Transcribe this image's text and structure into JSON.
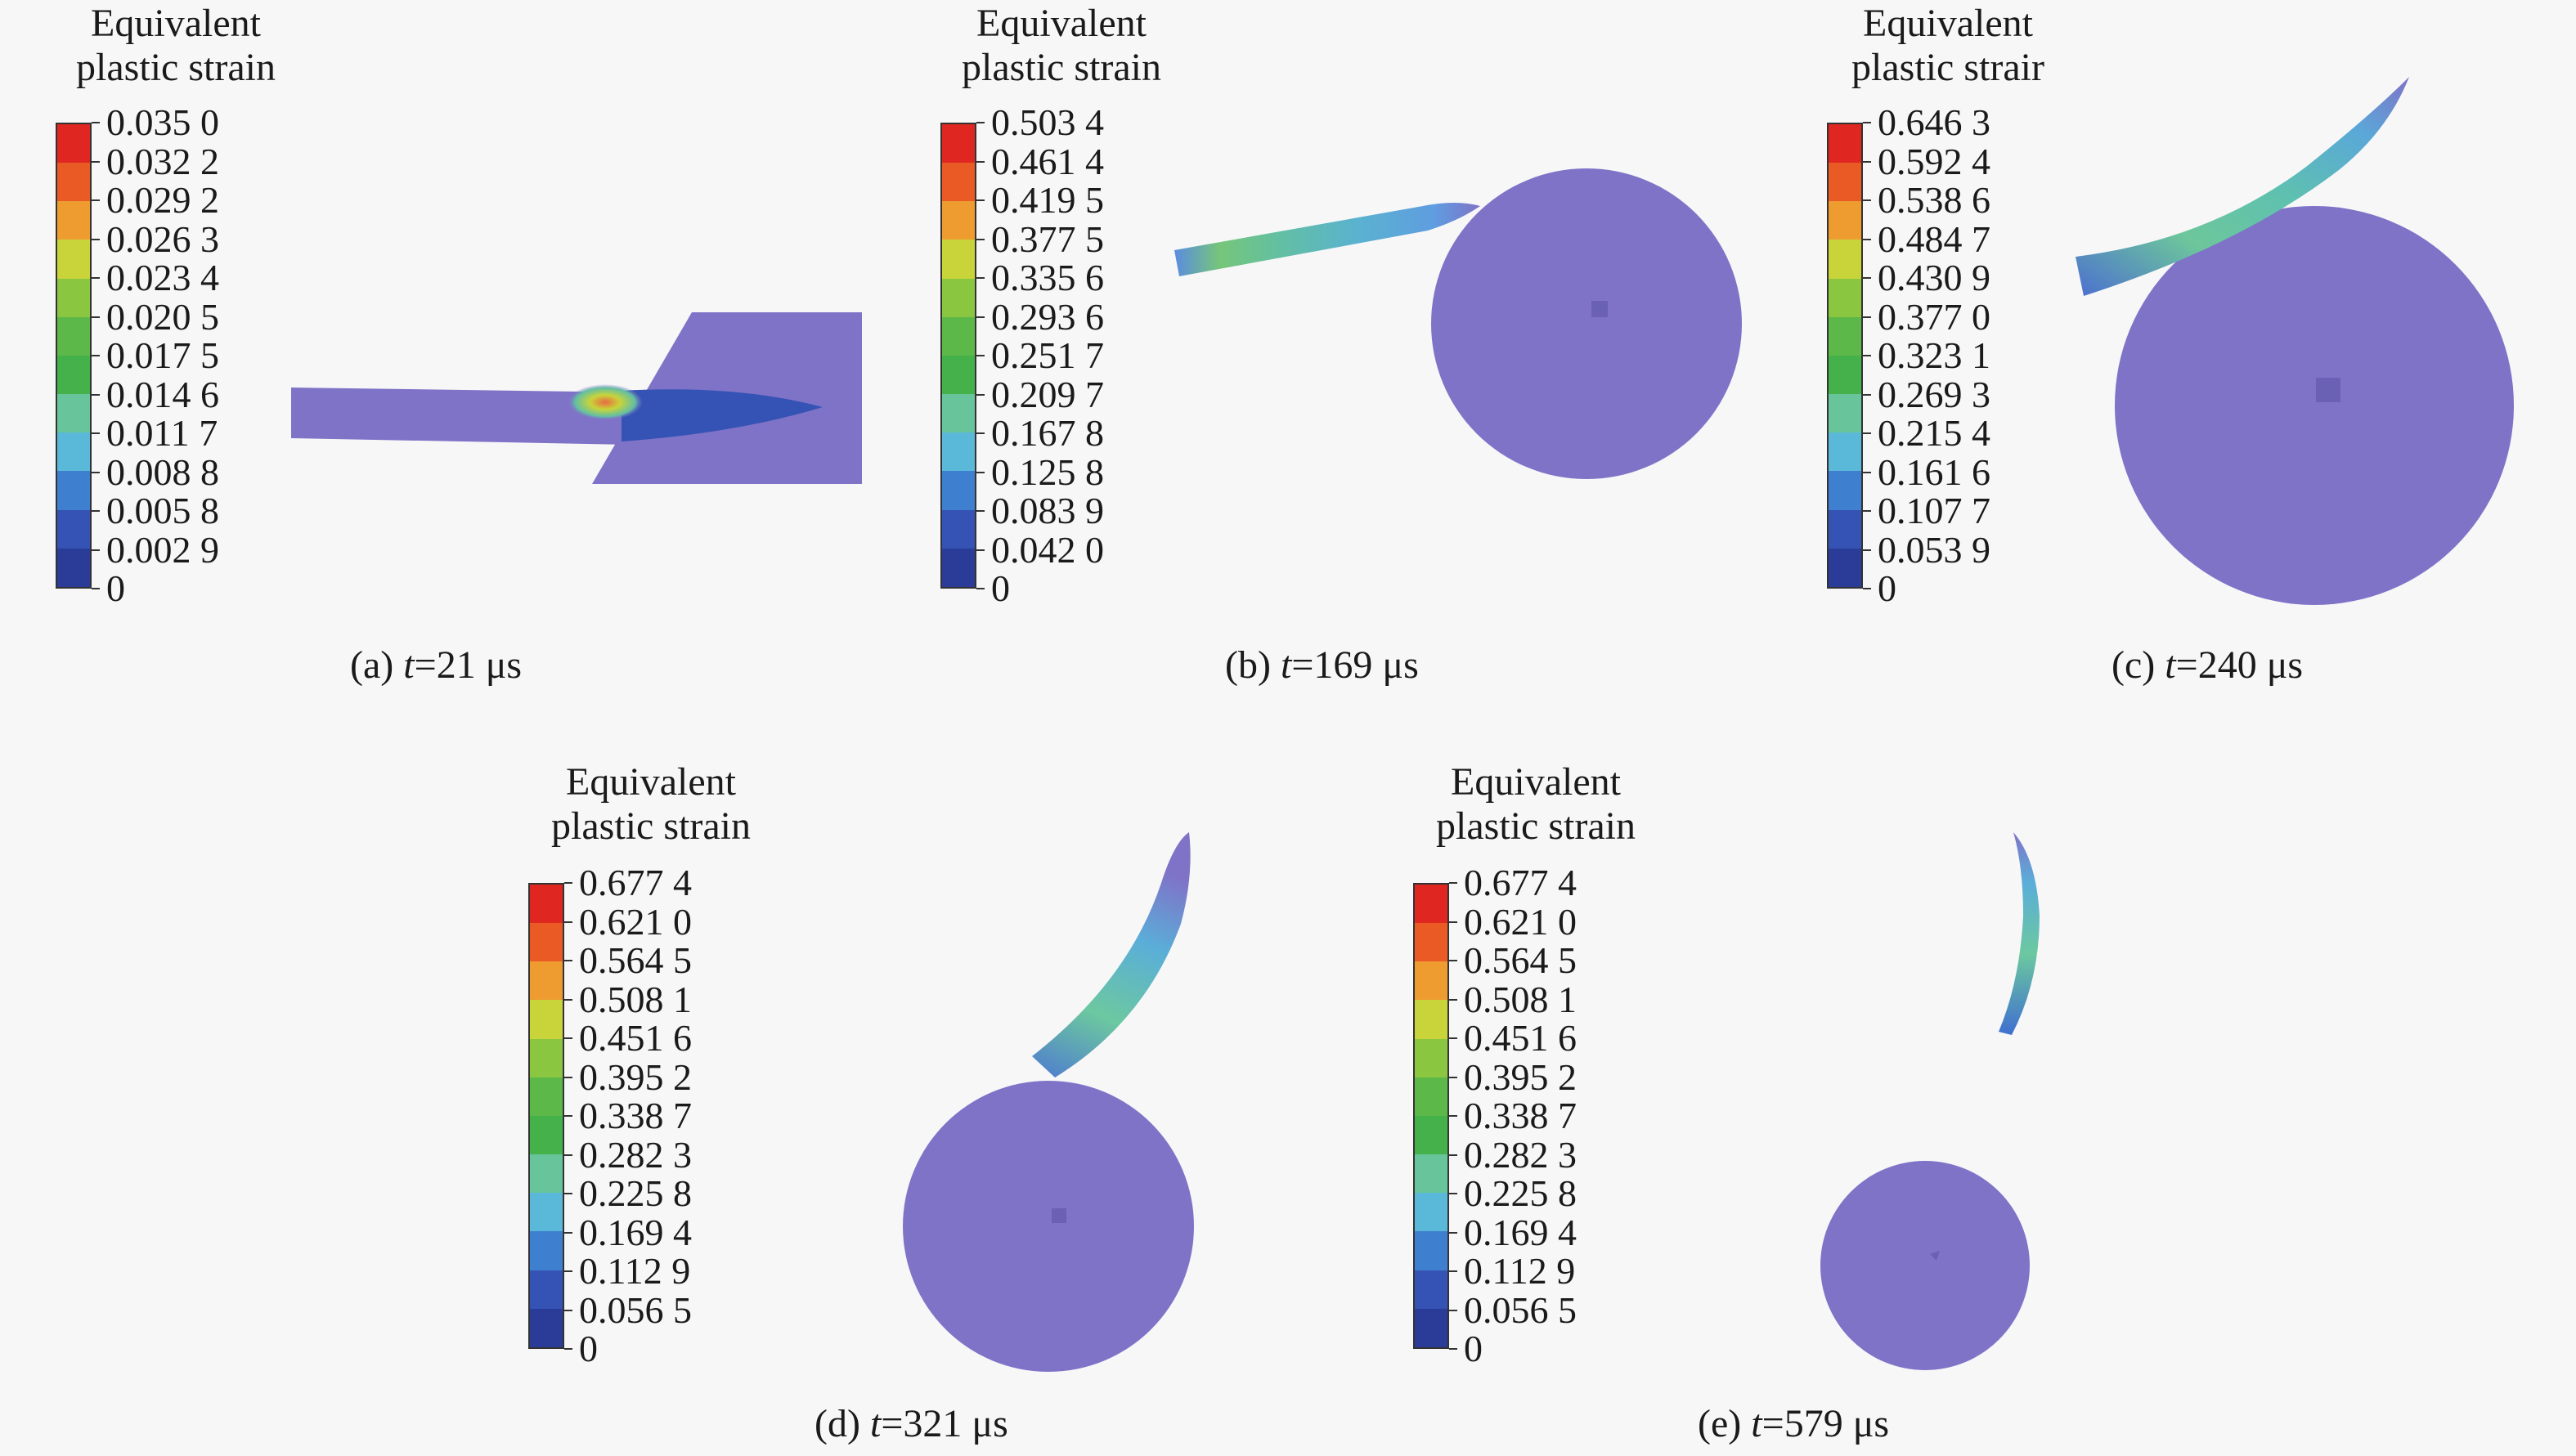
{
  "legend_title_line1": "Equivalent",
  "legend_title_line2": "plastic strain",
  "legend_title_line2_c": "plastic strair",
  "colors": [
    "#e02620",
    "#ea5a24",
    "#ee9b30",
    "#c8d43a",
    "#8bc640",
    "#5cb849",
    "#44b14a",
    "#68c49a",
    "#5ab8d8",
    "#3f7fd0",
    "#3553b4",
    "#2a3c98"
  ],
  "body_color": "#7f73c8",
  "panels": [
    {
      "id": "a",
      "caption_prefix": "(a) ",
      "caption_t": "t",
      "caption_suffix": "=21 μs",
      "ticks": [
        "0.035 0",
        "0.032 2",
        "0.029 2",
        "0.026 3",
        "0.023 4",
        "0.020 5",
        "0.017 5",
        "0.014 6",
        "0.011 7",
        "0.008 8",
        "0.005 8",
        "0.002 9",
        "0"
      ]
    },
    {
      "id": "b",
      "caption_prefix": "(b) ",
      "caption_t": "t",
      "caption_suffix": "=169 μs",
      "ticks": [
        "0.503 4",
        "0.461 4",
        "0.419 5",
        "0.377 5",
        "0.335 6",
        "0.293 6",
        "0.251 7",
        "0.209 7",
        "0.167 8",
        "0.125 8",
        "0.083 9",
        "0.042 0",
        "0"
      ]
    },
    {
      "id": "c",
      "caption_prefix": "(c) ",
      "caption_t": "t",
      "caption_suffix": "=240 μs",
      "ticks": [
        "0.646 3",
        "0.592 4",
        "0.538 6",
        "0.484 7",
        "0.430 9",
        "0.377 0",
        "0.323 1",
        "0.269 3",
        "0.215 4",
        "0.161 6",
        "0.107 7",
        "0.053 9",
        "0"
      ]
    },
    {
      "id": "d",
      "caption_prefix": "(d) ",
      "caption_t": "t",
      "caption_suffix": "=321 μs",
      "ticks": [
        "0.677 4",
        "0.621 0",
        "0.564 5",
        "0.508 1",
        "0.451 6",
        "0.395 2",
        "0.338 7",
        "0.282 3",
        "0.225 8",
        "0.169 4",
        "0.112 9",
        "0.056 5",
        "0"
      ]
    },
    {
      "id": "e",
      "caption_prefix": "(e) ",
      "caption_t": "t",
      "caption_suffix": "=579 μs",
      "ticks": [
        "0.677 4",
        "0.621 0",
        "0.564 5",
        "0.508 1",
        "0.451 6",
        "0.395 2",
        "0.338 7",
        "0.282 3",
        "0.225 8",
        "0.169 4",
        "0.112 9",
        "0.056 5",
        "0"
      ]
    }
  ]
}
